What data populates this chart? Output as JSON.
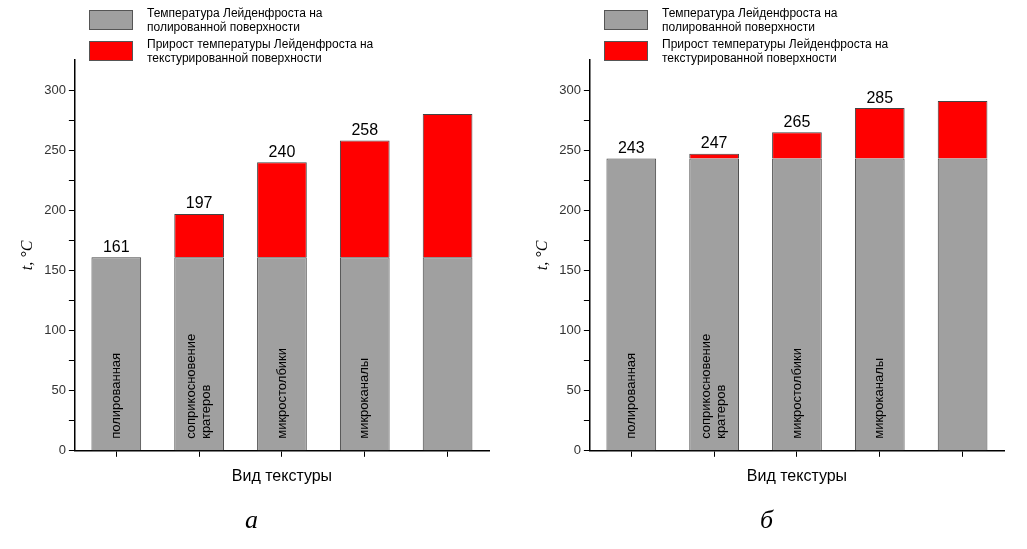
{
  "chart_data": [
    {
      "type": "bar",
      "stacked": true,
      "xlabel": "Вид текстуры",
      "ylabel": "t, °C",
      "categories": [
        "полированная",
        "соприкосновение кратеров",
        "микростолбики",
        "микроканалы",
        null
      ],
      "series": [
        {
          "name": "Температура Лейденфроста на полированной поверхности",
          "color": "#a0a0a0",
          "values": [
            161,
            161,
            161,
            161,
            161
          ]
        },
        {
          "name": "Прирост температуры Лейденфроста на текстурированной поверхности",
          "color": "#ff0000",
          "values": [
            0,
            36,
            79,
            97,
            119
          ]
        }
      ],
      "totals": [
        "161",
        "197",
        "240",
        "258",
        null
      ],
      "ylim": [
        0,
        325
      ],
      "yticks": [
        0,
        {
          "value": 25,
          "label": null
        },
        50,
        {
          "value": 75,
          "label": null
        },
        100,
        {
          "value": 125,
          "label": null
        },
        150,
        {
          "value": 175,
          "label": null
        },
        200,
        {
          "value": 225,
          "label": null
        },
        250,
        {
          "value": 275,
          "label": null
        },
        300
      ],
      "legend": "top left",
      "grid": false,
      "annotations": [
        "а"
      ]
    },
    {
      "type": "bar",
      "stacked": true,
      "xlabel": "Вид текстуры",
      "ylabel": "t, °C",
      "categories": [
        "полированная",
        "соприкосновение кратеров",
        "микростолбики",
        "микроканалы",
        null
      ],
      "series": [
        {
          "name": "Температура Лейденфроста на полированной поверхности",
          "color": "#a0a0a0",
          "values": [
            243,
            243,
            243,
            243,
            243
          ]
        },
        {
          "name": "Прирост температуры Лейденфроста на текстурированной поверхности",
          "color": "#ff0000",
          "values": [
            0,
            4,
            22,
            42,
            48
          ]
        }
      ],
      "totals": [
        "243",
        "247",
        "265",
        "285",
        null
      ],
      "ylim": [
        0,
        325
      ],
      "yticks": [
        0,
        {
          "value": 25,
          "label": null
        },
        50,
        {
          "value": 75,
          "label": null
        },
        100,
        {
          "value": 125,
          "label": null
        },
        150,
        {
          "value": 175,
          "label": null
        },
        200,
        {
          "value": 225,
          "label": null
        },
        250,
        {
          "value": 275,
          "label": null
        },
        300
      ],
      "legend": "top left",
      "grid": false,
      "annotations": [
        "б"
      ]
    }
  ]
}
